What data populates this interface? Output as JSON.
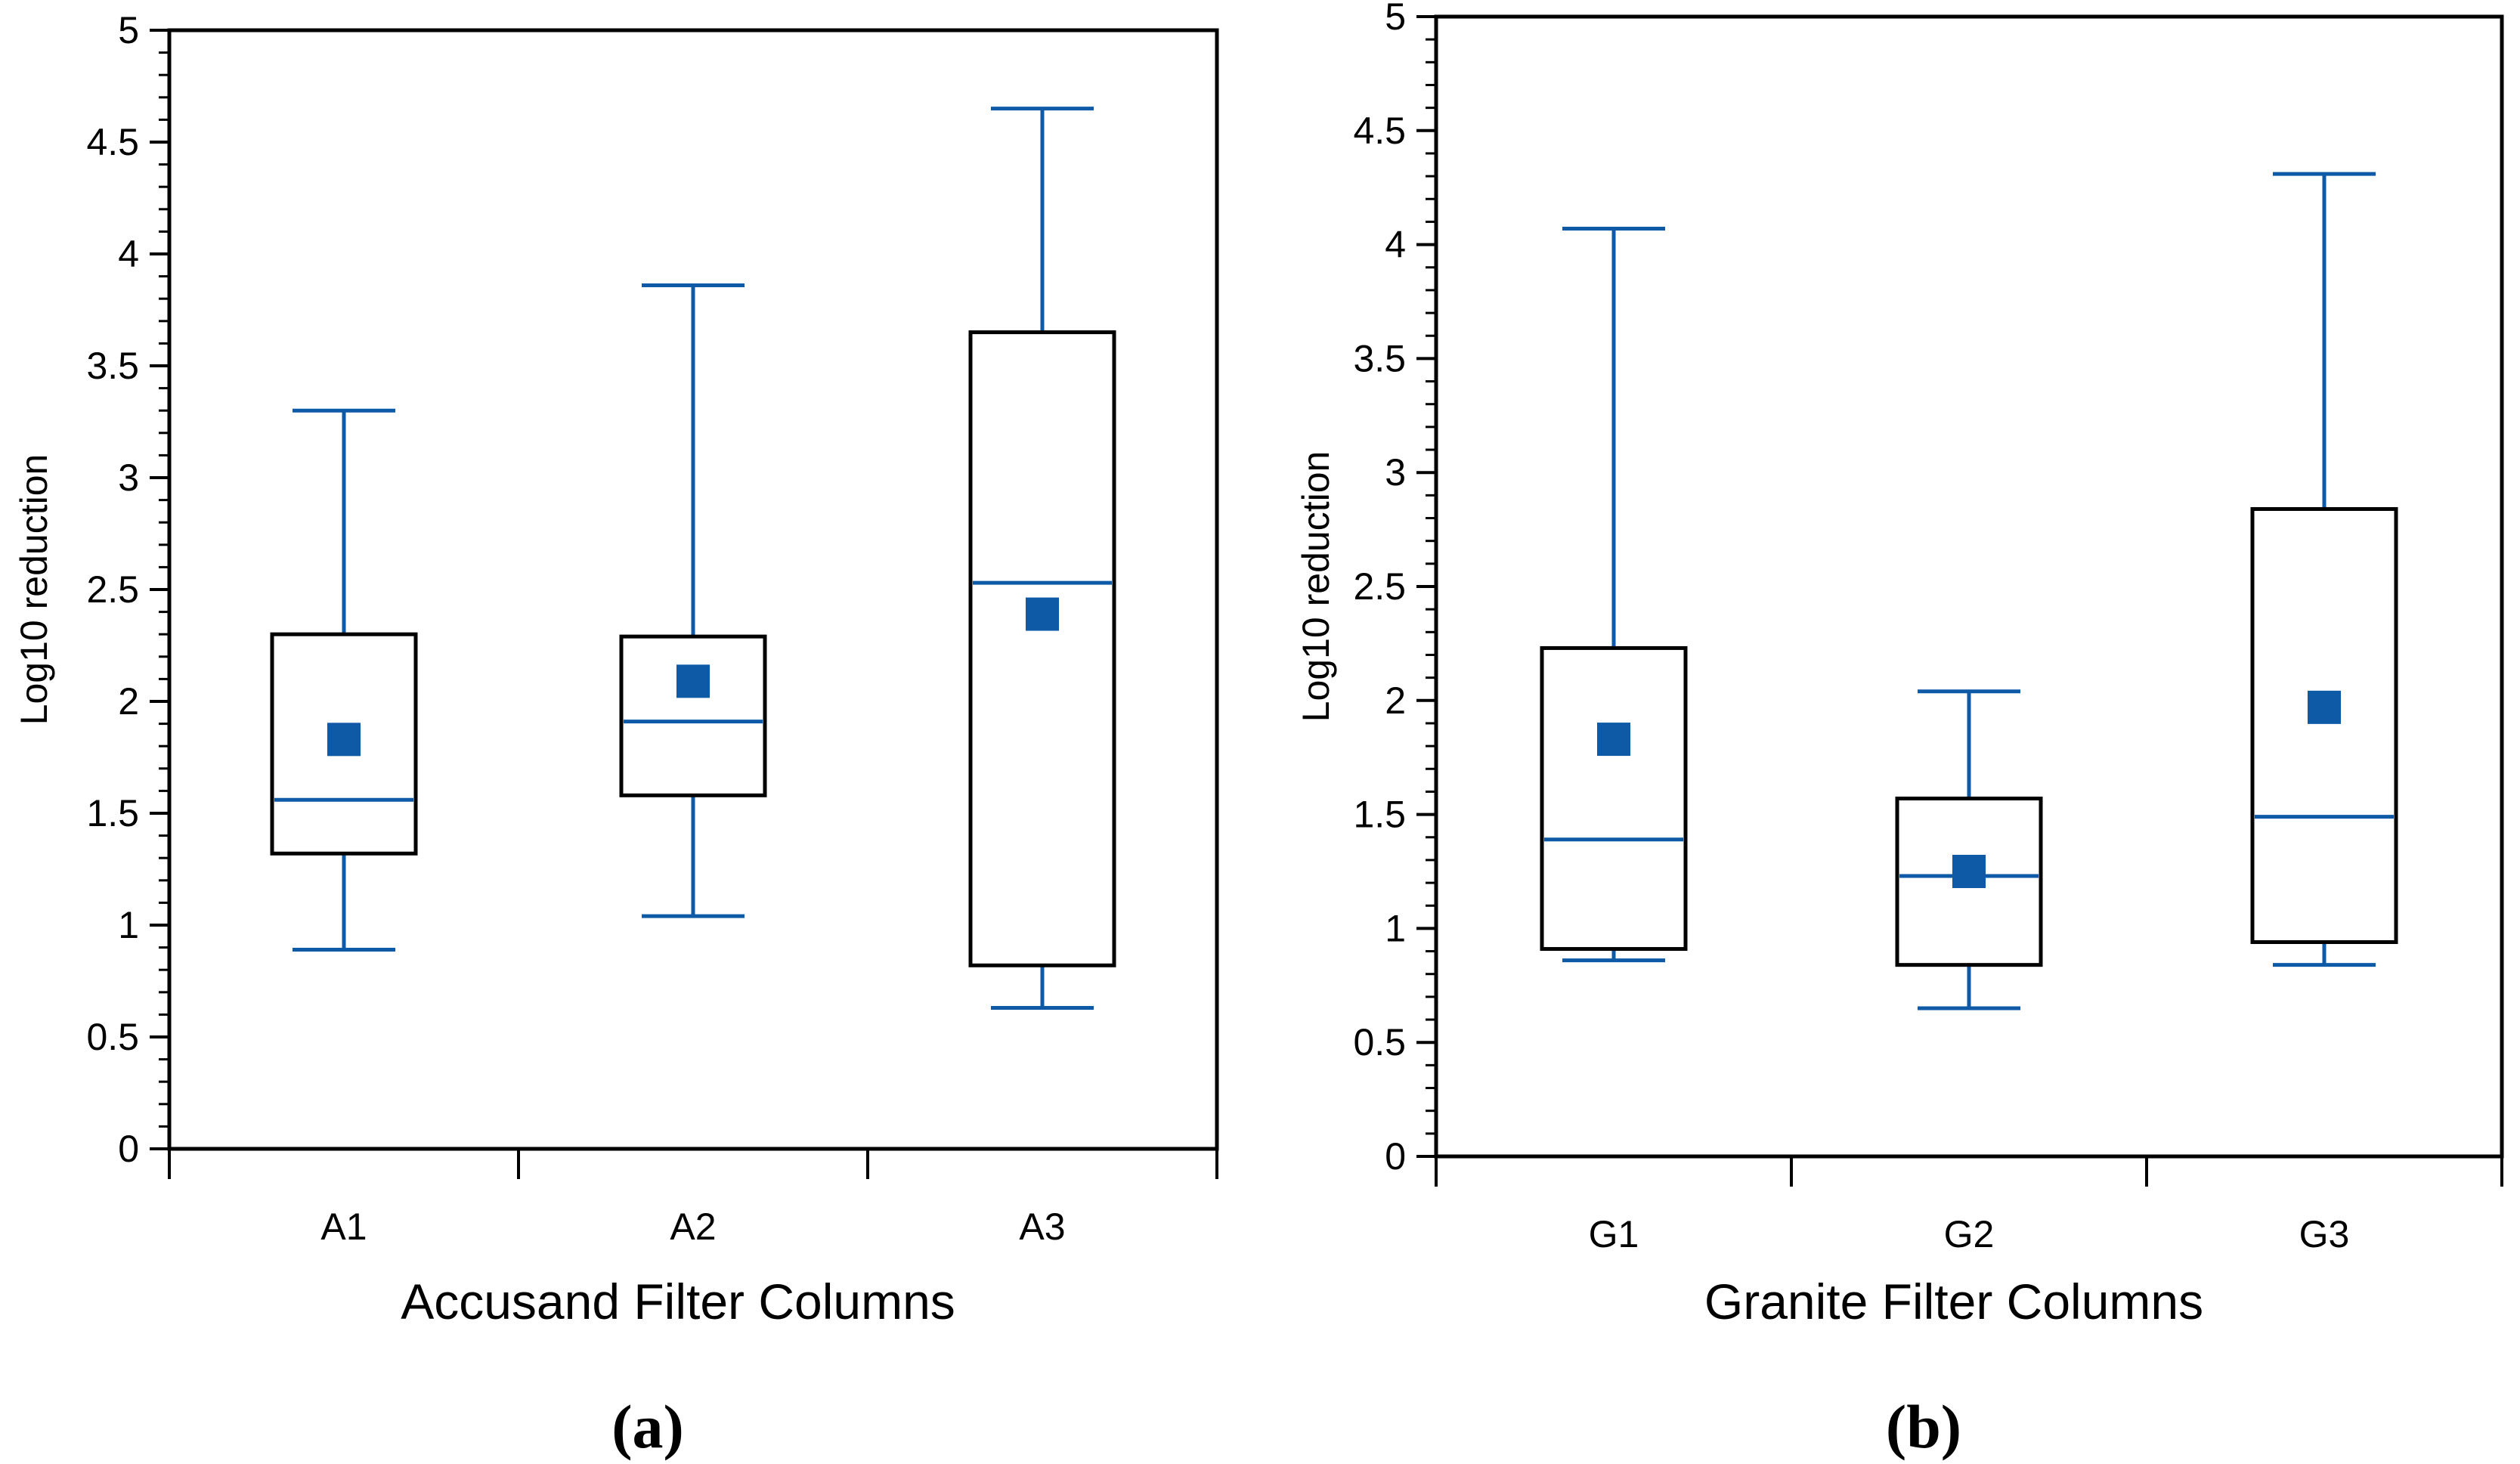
{
  "colors": {
    "series": "#0e5aa7",
    "axis": "#000000"
  },
  "chart_data": [
    {
      "type": "box",
      "panel_label": "(a)",
      "xlabel": "Accusand Filter Columns",
      "ylabel": "Log10 reduction",
      "ylim": [
        0,
        5
      ],
      "y_ticks": [
        "0",
        "0.5",
        "1",
        "1.5",
        "2",
        "2.5",
        "3",
        "3.5",
        "4",
        "4.5",
        "5"
      ],
      "categories": [
        "A1",
        "A2",
        "A3"
      ],
      "boxes": [
        {
          "label": "A1",
          "min": 0.89,
          "q1": 1.32,
          "median": 1.56,
          "q3": 2.3,
          "max": 3.3,
          "mean": 1.83
        },
        {
          "label": "A2",
          "min": 1.04,
          "q1": 1.58,
          "median": 1.91,
          "q3": 2.29,
          "max": 3.86,
          "mean": 2.09
        },
        {
          "label": "A3",
          "min": 0.63,
          "q1": 0.82,
          "median": 2.53,
          "q3": 3.65,
          "max": 4.65,
          "mean": 2.39
        }
      ]
    },
    {
      "type": "box",
      "panel_label": "(b)",
      "xlabel": "Granite Filter Columns",
      "ylabel": "Log10 reduction",
      "ylim": [
        0,
        5
      ],
      "y_ticks": [
        "0",
        "0.5",
        "1",
        "1.5",
        "2",
        "2.5",
        "3",
        "3.5",
        "4",
        "4.5",
        "5"
      ],
      "categories": [
        "G1",
        "G2",
        "G3"
      ],
      "boxes": [
        {
          "label": "G1",
          "min": 0.86,
          "q1": 0.91,
          "median": 1.39,
          "q3": 2.23,
          "max": 4.07,
          "mean": 1.83
        },
        {
          "label": "G2",
          "min": 0.65,
          "q1": 0.84,
          "median": 1.23,
          "q3": 1.57,
          "max": 2.04,
          "mean": 1.25
        },
        {
          "label": "G3",
          "min": 0.84,
          "q1": 0.94,
          "median": 1.49,
          "q3": 2.84,
          "max": 4.31,
          "mean": 1.97
        }
      ]
    }
  ]
}
